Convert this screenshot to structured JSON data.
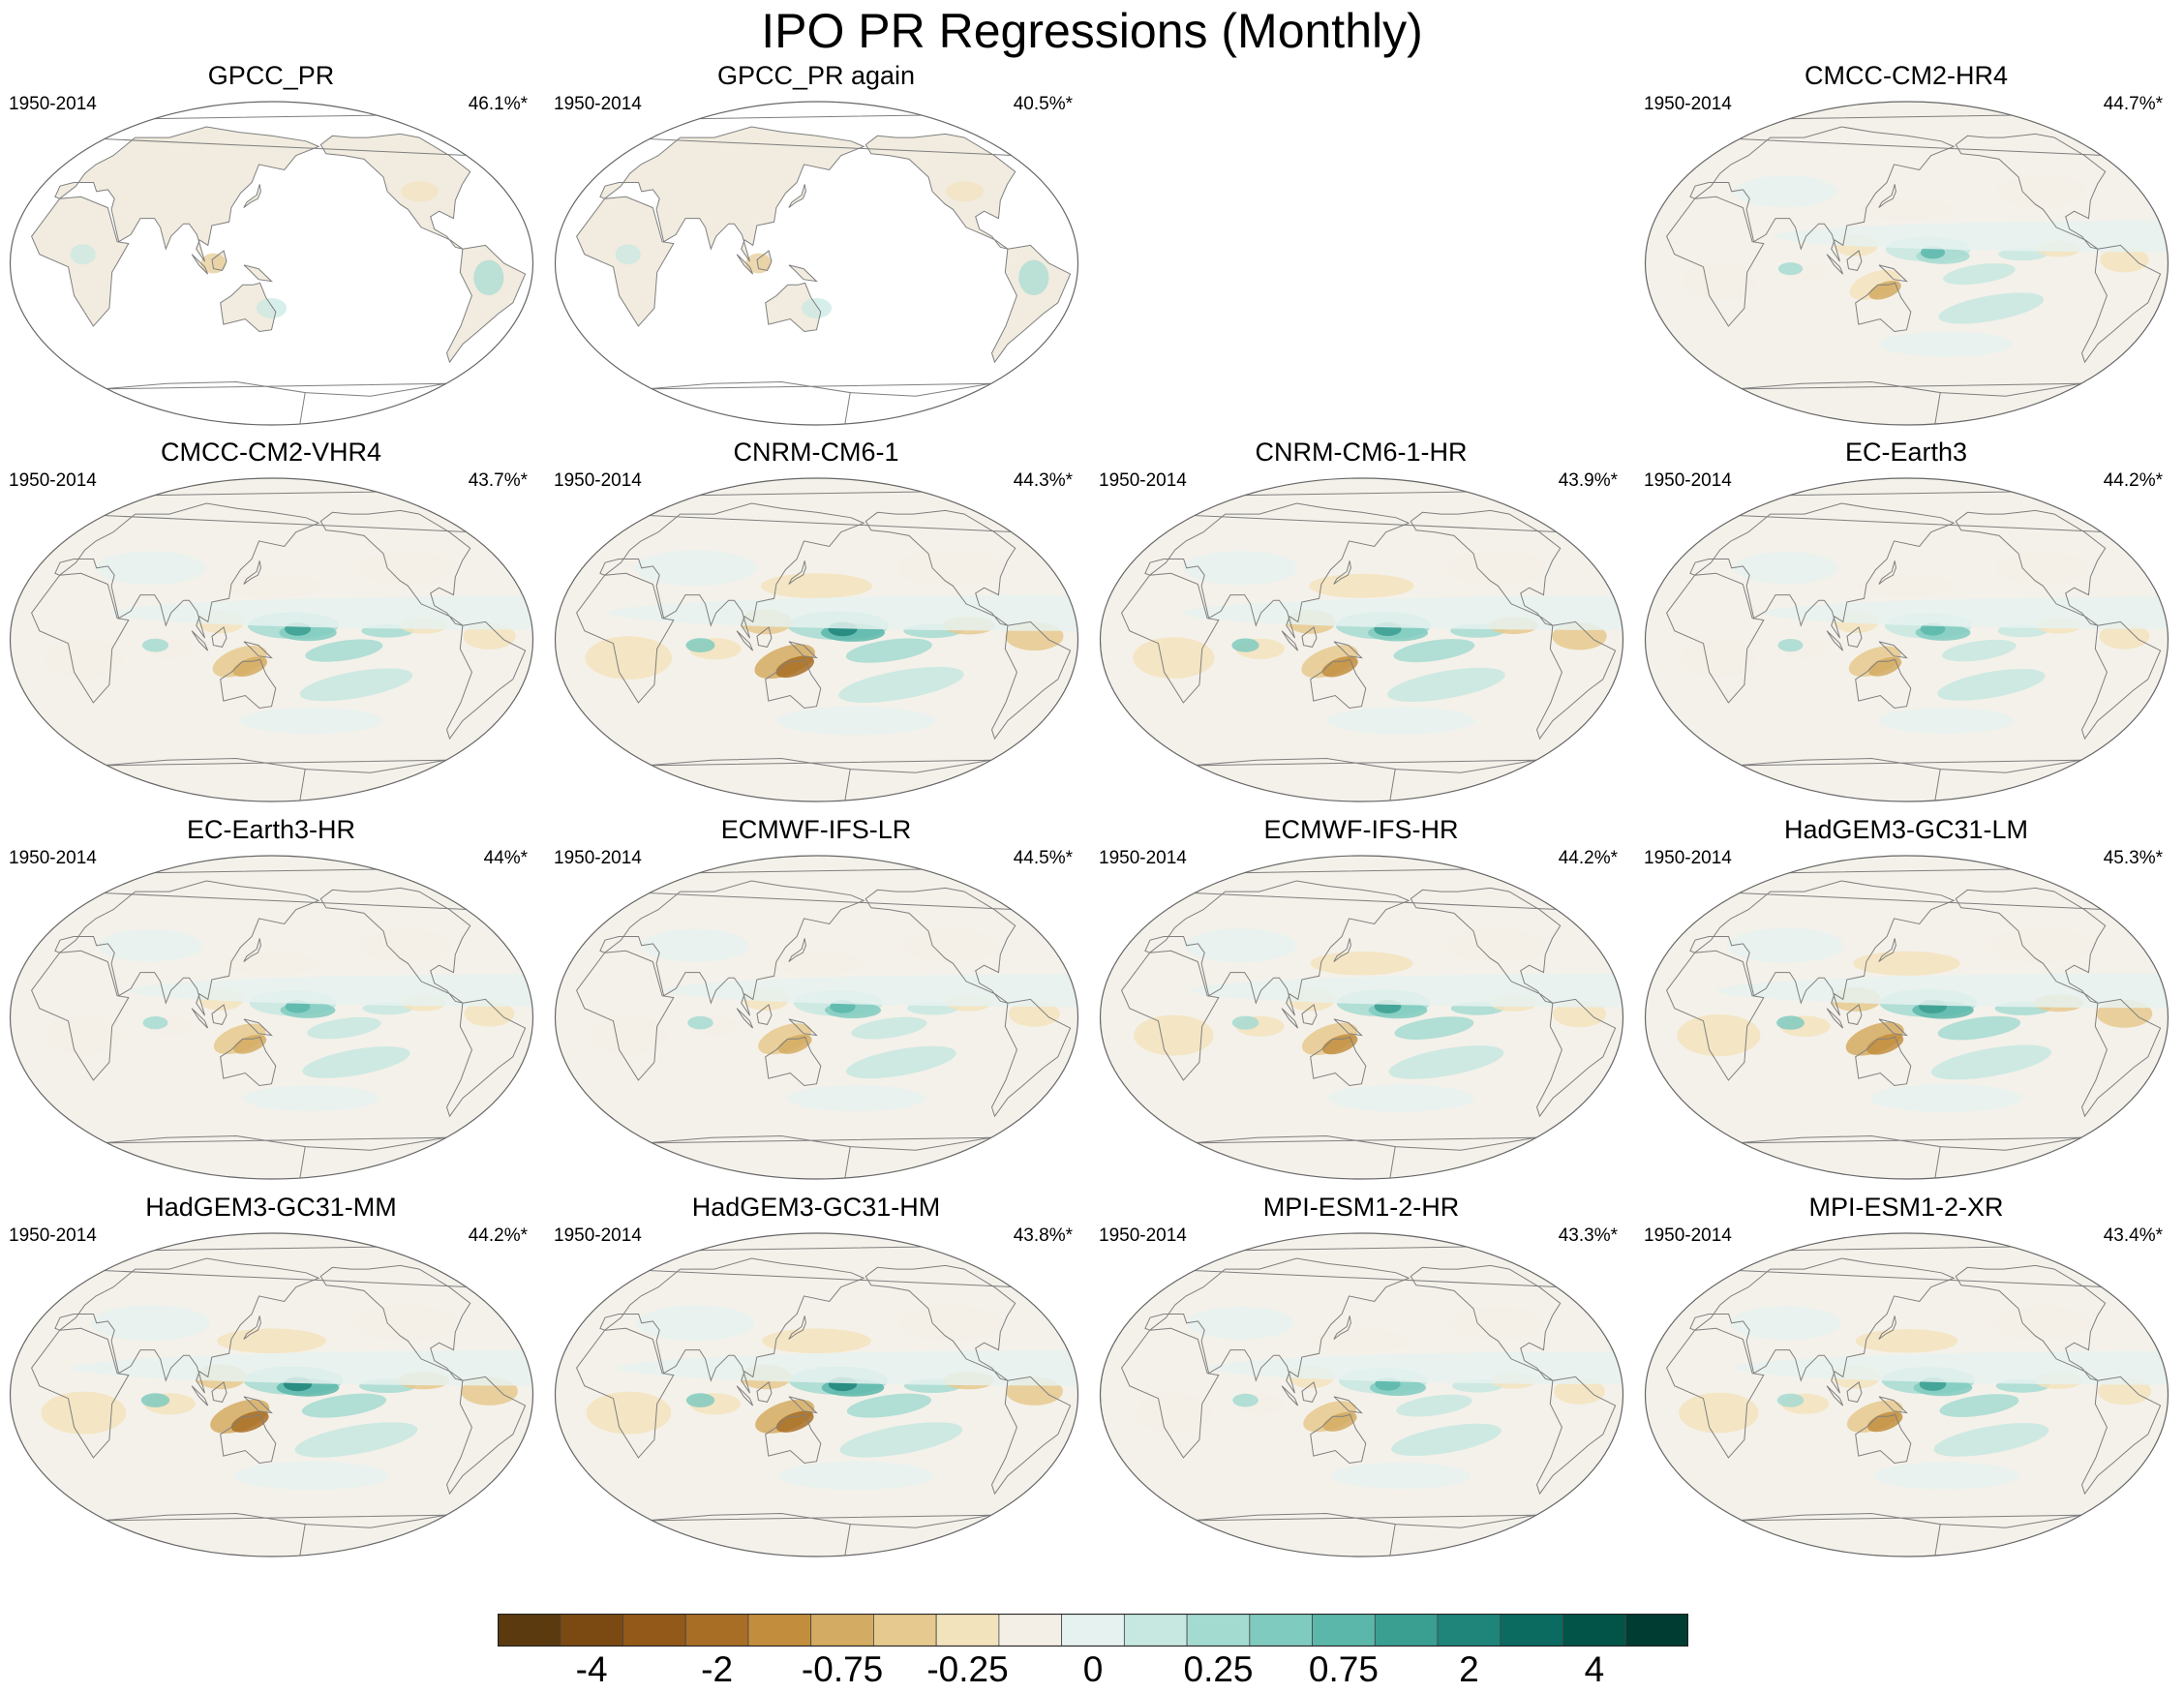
{
  "title": "IPO PR Regressions (Monthly)",
  "panels": [
    {
      "id": "gpcc",
      "title": "GPCC_PR",
      "period": "1950-2014",
      "percent": "46.1%*",
      "row": 0,
      "col": 0,
      "land_only": true,
      "strength": 0.35
    },
    {
      "id": "gpcc2",
      "title": "GPCC_PR again",
      "period": "1950-2014",
      "percent": "40.5%*",
      "row": 0,
      "col": 1,
      "land_only": true,
      "strength": 0.35
    },
    {
      "id": "cmcc-hr4",
      "title": "CMCC-CM2-HR4",
      "period": "1950-2014",
      "percent": "44.7%*",
      "row": 0,
      "col": 3,
      "land_only": false,
      "strength": 0.6
    },
    {
      "id": "cmcc-vhr4",
      "title": "CMCC-CM2-VHR4",
      "period": "1950-2014",
      "percent": "43.7%*",
      "row": 1,
      "col": 0,
      "land_only": false,
      "strength": 0.75
    },
    {
      "id": "cnrm",
      "title": "CNRM-CM6-1",
      "period": "1950-2014",
      "percent": "44.3%*",
      "row": 1,
      "col": 1,
      "land_only": false,
      "strength": 1.0
    },
    {
      "id": "cnrm-hr",
      "title": "CNRM-CM6-1-HR",
      "period": "1950-2014",
      "percent": "43.9%*",
      "row": 1,
      "col": 2,
      "land_only": false,
      "strength": 0.85
    },
    {
      "id": "ec-earth3",
      "title": "EC-Earth3",
      "period": "1950-2014",
      "percent": "44.2%*",
      "row": 1,
      "col": 3,
      "land_only": false,
      "strength": 0.65
    },
    {
      "id": "ec-earth3-hr",
      "title": "EC-Earth3-HR",
      "period": "1950-2014",
      "percent": "44%*",
      "row": 2,
      "col": 0,
      "land_only": false,
      "strength": 0.65
    },
    {
      "id": "ecmwf-lr",
      "title": "ECMWF-IFS-LR",
      "period": "1950-2014",
      "percent": "44.5%*",
      "row": 2,
      "col": 1,
      "land_only": false,
      "strength": 0.7
    },
    {
      "id": "ecmwf-hr",
      "title": "ECMWF-IFS-HR",
      "period": "1950-2014",
      "percent": "44.2%*",
      "row": 2,
      "col": 2,
      "land_only": false,
      "strength": 0.8
    },
    {
      "id": "hadgem-lm",
      "title": "HadGEM3-GC31-LM",
      "period": "1950-2014",
      "percent": "45.3%*",
      "row": 2,
      "col": 3,
      "land_only": false,
      "strength": 0.9
    },
    {
      "id": "hadgem-mm",
      "title": "HadGEM3-GC31-MM",
      "period": "1950-2014",
      "percent": "44.2%*",
      "row": 3,
      "col": 0,
      "land_only": false,
      "strength": 0.95
    },
    {
      "id": "hadgem-hm",
      "title": "HadGEM3-GC31-HM",
      "period": "1950-2014",
      "percent": "43.8%*",
      "row": 3,
      "col": 1,
      "land_only": false,
      "strength": 0.95
    },
    {
      "id": "mpi-hr",
      "title": "MPI-ESM1-2-HR",
      "period": "1950-2014",
      "percent": "43.3%*",
      "row": 3,
      "col": 2,
      "land_only": false,
      "strength": 0.7
    },
    {
      "id": "mpi-xr",
      "title": "MPI-ESM1-2-XR",
      "period": "1950-2014",
      "percent": "43.4%*",
      "row": 3,
      "col": 3,
      "land_only": false,
      "strength": 0.8
    }
  ],
  "colorbar": {
    "colors": [
      "#5a3a0e",
      "#7a4a12",
      "#935919",
      "#a86e25",
      "#c28e3e",
      "#d4ab62",
      "#e6c98e",
      "#f3e3bd",
      "#f3efe6",
      "#e6f2f0",
      "#c6e8e1",
      "#a4dbd1",
      "#80cbbf",
      "#5bb7aa",
      "#3a9e91",
      "#1f857b",
      "#0b6b61",
      "#035448",
      "#013c33"
    ],
    "labels": [
      "-4",
      "-2",
      "-0.75",
      "-0.25",
      "0",
      "0.25",
      "0.75",
      "2",
      "4"
    ],
    "label_boundaries": [
      2,
      4,
      6,
      8,
      10,
      12,
      14,
      16,
      18
    ]
  }
}
